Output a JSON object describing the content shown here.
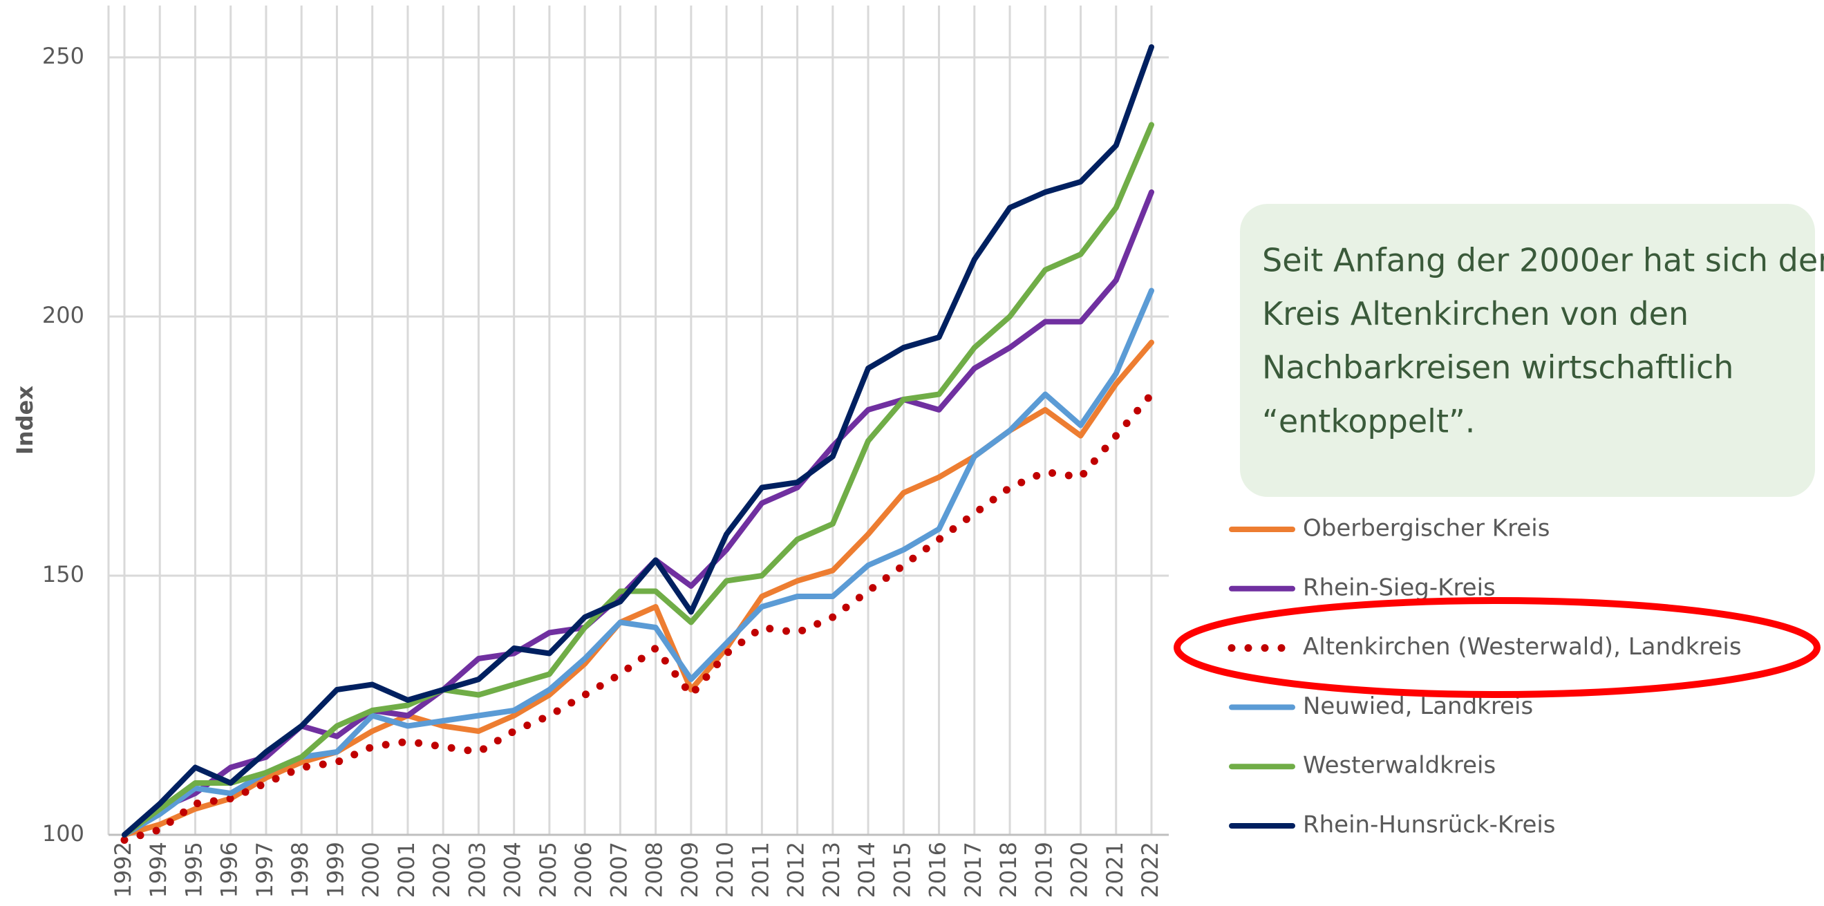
{
  "chart_data": {
    "type": "line",
    "y_label": "Index",
    "annotation": [
      "Seit Anfang der 2000er hat sich der",
      "Kreis Altenkirchen von den",
      "Nachbarkreisen wirtschaftlich",
      "“entkoppelt”."
    ],
    "categories": [
      "1992",
      "1994",
      "1995",
      "1996",
      "1997",
      "1998",
      "1999",
      "2000",
      "2001",
      "2002",
      "2003",
      "2004",
      "2005",
      "2006",
      "2007",
      "2008",
      "2009",
      "2010",
      "2011",
      "2012",
      "2013",
      "2014",
      "2015",
      "2016",
      "2017",
      "2018",
      "2019",
      "2020",
      "2021",
      "2022"
    ],
    "ylim": [
      100,
      260
    ],
    "yticks": [
      100,
      150,
      200,
      250
    ],
    "grid": true,
    "series": [
      {
        "name": "Oberbergischer Kreis",
        "color": "#ed7d31",
        "style": "solid",
        "values": [
          100,
          102,
          105,
          107,
          111,
          114,
          116,
          120,
          123,
          121,
          120,
          123,
          127,
          133,
          141,
          144,
          128,
          136,
          146,
          149,
          151,
          158,
          166,
          169,
          173,
          178,
          182,
          177,
          187,
          195
        ]
      },
      {
        "name": "Rhein-Sieg-Kreis",
        "color": "#7030a0",
        "style": "solid",
        "values": [
          100,
          105,
          108,
          113,
          115,
          121,
          119,
          124,
          123,
          128,
          134,
          135,
          139,
          140,
          146,
          153,
          148,
          155,
          164,
          167,
          175,
          182,
          184,
          182,
          190,
          194,
          199,
          199,
          207,
          224
        ]
      },
      {
        "name": "Altenkirchen (Westerwald), Landkreis",
        "color": "#c00000",
        "style": "dotted",
        "values": [
          99,
          101,
          106,
          107,
          110,
          113,
          114,
          117,
          118,
          117,
          116,
          120,
          123,
          127,
          131,
          136,
          127,
          135,
          140,
          139,
          142,
          147,
          152,
          157,
          162,
          167,
          170,
          169,
          177,
          185
        ]
      },
      {
        "name": "Neuwied, Landkreis",
        "color": "#5b9bd5",
        "style": "solid",
        "values": [
          100,
          104,
          109,
          108,
          112,
          115,
          116,
          123,
          121,
          122,
          123,
          124,
          128,
          134,
          141,
          140,
          130,
          137,
          144,
          146,
          146,
          152,
          155,
          159,
          173,
          178,
          185,
          179,
          189,
          205
        ]
      },
      {
        "name": "Westerwaldkreis",
        "color": "#70ad47",
        "style": "solid",
        "values": [
          100,
          105,
          110,
          110,
          112,
          115,
          121,
          124,
          125,
          128,
          127,
          129,
          131,
          140,
          147,
          147,
          141,
          149,
          150,
          157,
          160,
          176,
          184,
          185,
          194,
          200,
          209,
          212,
          221,
          237
        ]
      },
      {
        "name": "Rhein-Hunsrück-Kreis",
        "color": "#002060",
        "style": "solid",
        "values": [
          100,
          106,
          113,
          110,
          116,
          121,
          128,
          129,
          126,
          128,
          130,
          136,
          135,
          142,
          145,
          153,
          143,
          158,
          167,
          168,
          173,
          190,
          194,
          196,
          211,
          221,
          224,
          226,
          233,
          252
        ]
      }
    ]
  }
}
